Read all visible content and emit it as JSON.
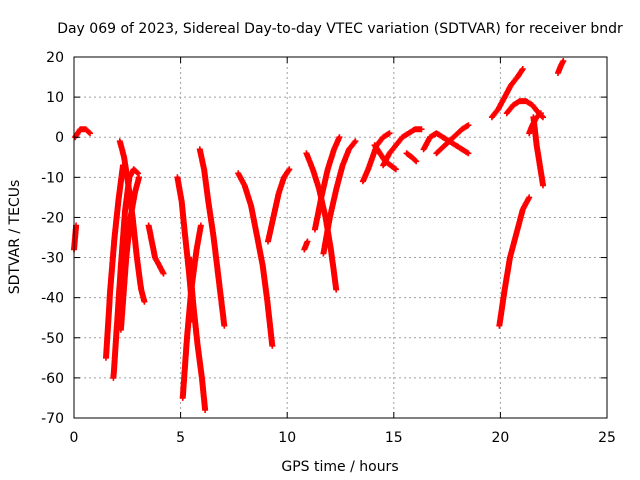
{
  "chart_data": {
    "type": "scatter",
    "title": "Day 069 of 2023, Sidereal Day-to-day VTEC variation (SDTVAR) for receiver bndr",
    "xlabel": "GPS time / hours",
    "ylabel": "SDTVAR / TECUs",
    "xlim": [
      0,
      25
    ],
    "ylim": [
      -70,
      20
    ],
    "xticks": [
      0,
      5,
      10,
      15,
      20,
      25
    ],
    "yticks": [
      -70,
      -60,
      -50,
      -40,
      -30,
      -20,
      -10,
      0,
      10,
      20
    ],
    "grid": true,
    "marker": "+",
    "marker_color": "#ff0000",
    "arcs": [
      {
        "x": [
          0.0,
          0.1
        ],
        "y": [
          -28,
          -22
        ]
      },
      {
        "x": [
          0.05,
          0.3,
          0.55,
          0.75
        ],
        "y": [
          0,
          2,
          2,
          1
        ]
      },
      {
        "x": [
          1.5,
          1.7,
          1.9,
          2.1,
          2.3
        ],
        "y": [
          -55,
          -38,
          -25,
          -15,
          -7
        ]
      },
      {
        "x": [
          1.85,
          2.0,
          2.2,
          2.4,
          2.6,
          2.8,
          3.0
        ],
        "y": [
          -60,
          -48,
          -32,
          -18,
          -10,
          -8,
          -9
        ]
      },
      {
        "x": [
          2.15,
          2.35,
          2.55,
          2.75,
          2.95,
          3.15,
          3.3
        ],
        "y": [
          -1,
          -5,
          -12,
          -20,
          -30,
          -38,
          -41
        ]
      },
      {
        "x": [
          2.2,
          2.45,
          2.65,
          2.85,
          3.05
        ],
        "y": [
          -48,
          -30,
          -20,
          -14,
          -10
        ]
      },
      {
        "x": [
          3.5,
          3.65,
          3.8,
          4.0,
          4.2
        ],
        "y": [
          -22,
          -26,
          -30,
          -32,
          -34
        ]
      },
      {
        "x": [
          4.85,
          5.05,
          5.2,
          5.4,
          5.6
        ],
        "y": [
          -10,
          -16,
          -24,
          -34,
          -46
        ]
      },
      {
        "x": [
          5.1,
          5.3,
          5.5,
          5.75,
          5.95
        ],
        "y": [
          -65,
          -50,
          -38,
          -28,
          -22
        ]
      },
      {
        "x": [
          5.4,
          5.6,
          5.8,
          6.0,
          6.15
        ],
        "y": [
          -30,
          -42,
          -52,
          -60,
          -68
        ]
      },
      {
        "x": [
          5.9,
          6.1,
          6.3,
          6.55,
          6.8,
          7.05
        ],
        "y": [
          -3,
          -8,
          -16,
          -25,
          -36,
          -47
        ]
      },
      {
        "x": [
          7.7,
          8.0,
          8.3,
          8.6,
          8.85,
          9.05,
          9.3
        ],
        "y": [
          -9,
          -12,
          -17,
          -25,
          -32,
          -40,
          -52
        ]
      },
      {
        "x": [
          9.1,
          9.35,
          9.6,
          9.85,
          10.1
        ],
        "y": [
          -26,
          -20,
          -14,
          -10,
          -8
        ]
      },
      {
        "x": [
          10.8,
          10.95
        ],
        "y": [
          -28,
          -26
        ]
      },
      {
        "x": [
          10.9,
          11.2,
          11.5,
          11.8,
          12.05,
          12.3
        ],
        "y": [
          -4,
          -8,
          -13,
          -20,
          -28,
          -38
        ]
      },
      {
        "x": [
          11.3,
          11.6,
          11.9,
          12.2,
          12.45
        ],
        "y": [
          -23,
          -15,
          -8,
          -3,
          0
        ]
      },
      {
        "x": [
          11.7,
          12.0,
          12.3,
          12.6,
          12.9,
          13.2
        ],
        "y": [
          -29,
          -20,
          -13,
          -7,
          -3,
          -1
        ]
      },
      {
        "x": [
          13.55,
          13.8,
          14.0,
          14.2,
          14.5,
          14.8
        ],
        "y": [
          -11,
          -8,
          -5,
          -2,
          0,
          1
        ]
      },
      {
        "x": [
          14.1,
          14.35,
          14.6,
          14.85,
          15.1
        ],
        "y": [
          -2,
          -4,
          -6,
          -7,
          -8
        ]
      },
      {
        "x": [
          14.5,
          14.8,
          15.1,
          15.4,
          15.7,
          16.0,
          16.3
        ],
        "y": [
          -7,
          -4,
          -2,
          0,
          1,
          2,
          2
        ]
      },
      {
        "x": [
          15.6,
          15.85,
          16.05
        ],
        "y": [
          -4,
          -5,
          -6
        ]
      },
      {
        "x": [
          16.4,
          16.7,
          17.0,
          17.3,
          17.6,
          17.9,
          18.2,
          18.5
        ],
        "y": [
          -3,
          0,
          1,
          0,
          -1,
          -2,
          -3,
          -4
        ]
      },
      {
        "x": [
          17.0,
          17.4,
          17.8,
          18.2,
          18.5
        ],
        "y": [
          -4,
          -2,
          0,
          2,
          3
        ]
      },
      {
        "x": [
          19.6,
          19.9,
          20.2,
          20.5,
          20.8,
          21.05
        ],
        "y": [
          5,
          7,
          10,
          13,
          15,
          17
        ]
      },
      {
        "x": [
          20.3,
          20.6,
          20.9,
          21.2,
          21.5,
          21.8,
          22.0
        ],
        "y": [
          6,
          8,
          9,
          9,
          8,
          6,
          5
        ]
      },
      {
        "x": [
          19.95,
          20.2,
          20.45,
          20.75,
          21.05,
          21.35
        ],
        "y": [
          -47,
          -38,
          -30,
          -24,
          -18,
          -15
        ]
      },
      {
        "x": [
          21.35,
          21.5,
          21.7,
          21.9
        ],
        "y": [
          1,
          3,
          5,
          6
        ]
      },
      {
        "x": [
          21.55,
          21.7,
          21.85,
          22.0
        ],
        "y": [
          5,
          -2,
          -7,
          -12
        ]
      },
      {
        "x": [
          22.7,
          22.85,
          22.95
        ],
        "y": [
          16,
          18,
          19
        ]
      }
    ]
  }
}
